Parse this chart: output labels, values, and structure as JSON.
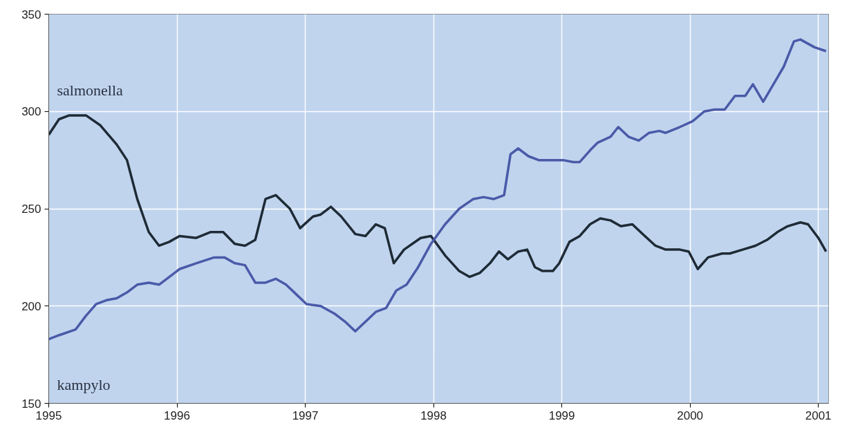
{
  "chart_data": {
    "type": "line",
    "xlim": [
      1995,
      2001.08
    ],
    "xticks": [
      1995,
      1996,
      1997,
      1998,
      1999,
      2000,
      2001
    ],
    "ylim": [
      150,
      350
    ],
    "yticks": [
      150,
      200,
      250,
      300,
      350
    ],
    "grid": true,
    "marker": "none",
    "line_style": "solid",
    "series": [
      {
        "name": "salmonella",
        "color": "#1e2a35",
        "x": [
          1995.0,
          1995.08,
          1995.16,
          1995.29,
          1995.4,
          1995.53,
          1995.61,
          1995.69,
          1995.78,
          1995.86,
          1995.94,
          1996.02,
          1996.15,
          1996.26,
          1996.36,
          1996.45,
          1996.53,
          1996.61,
          1996.69,
          1996.77,
          1996.88,
          1996.96,
          1997.06,
          1997.12,
          1997.2,
          1997.28,
          1997.39,
          1997.47,
          1997.55,
          1997.62,
          1997.69,
          1997.77,
          1997.9,
          1997.98,
          1998.09,
          1998.2,
          1998.28,
          1998.36,
          1998.44,
          1998.51,
          1998.58,
          1998.66,
          1998.73,
          1998.79,
          1998.85,
          1998.93,
          1998.98,
          1999.06,
          1999.14,
          1999.22,
          1999.3,
          1999.38,
          1999.46,
          1999.55,
          1999.63,
          1999.73,
          1999.81,
          1999.92,
          1999.99,
          2000.06,
          2000.14,
          2000.25,
          2000.31,
          2000.41,
          2000.51,
          2000.6,
          2000.68,
          2000.76,
          2000.86,
          2000.92,
          2001.0,
          2001.06
        ],
        "values": [
          288,
          296,
          298,
          298,
          293,
          283,
          275,
          255,
          238,
          231,
          233,
          236,
          235,
          238,
          238,
          232,
          231,
          234,
          255,
          257,
          250,
          240,
          246,
          247,
          251,
          246,
          237,
          236,
          242,
          240,
          222,
          229,
          235,
          236,
          226,
          218,
          215,
          217,
          222,
          228,
          224,
          228,
          229,
          220,
          218,
          218,
          222,
          233,
          236,
          242,
          245,
          244,
          241,
          242,
          237,
          231,
          229,
          229,
          228,
          219,
          225,
          227,
          227,
          229,
          231,
          234,
          238,
          241,
          243,
          242,
          235,
          228
        ]
      },
      {
        "name": "kampylo",
        "color": "#4a5aa8",
        "x": [
          1995.0,
          1995.08,
          1995.21,
          1995.29,
          1995.37,
          1995.45,
          1995.53,
          1995.61,
          1995.69,
          1995.78,
          1995.86,
          1995.94,
          1996.02,
          1996.15,
          1996.29,
          1996.37,
          1996.45,
          1996.53,
          1996.61,
          1996.69,
          1996.77,
          1996.85,
          1996.93,
          1997.01,
          1997.12,
          1997.23,
          1997.31,
          1997.39,
          1997.47,
          1997.55,
          1997.63,
          1997.71,
          1997.79,
          1997.88,
          1997.98,
          1998.09,
          1998.2,
          1998.31,
          1998.39,
          1998.47,
          1998.55,
          1998.6,
          1998.66,
          1998.74,
          1998.82,
          1999.01,
          1999.09,
          1999.14,
          1999.22,
          1999.28,
          1999.38,
          1999.44,
          1999.52,
          1999.6,
          1999.68,
          1999.76,
          1999.81,
          1999.92,
          2000.02,
          2000.11,
          2000.19,
          2000.27,
          2000.35,
          2000.43,
          2000.49,
          2000.57,
          2000.65,
          2000.73,
          2000.81,
          2000.86,
          2000.97,
          2001.06
        ],
        "values": [
          183,
          185,
          188,
          195,
          201,
          203,
          204,
          207,
          211,
          212,
          211,
          215,
          219,
          222,
          225,
          225,
          222,
          221,
          212,
          212,
          214,
          211,
          206,
          201,
          200,
          196,
          192,
          187,
          192,
          197,
          199,
          208,
          211,
          220,
          232,
          242,
          250,
          255,
          256,
          255,
          257,
          278,
          281,
          277,
          275,
          275,
          274,
          274,
          280,
          284,
          287,
          292,
          287,
          285,
          289,
          290,
          289,
          292,
          295,
          300,
          301,
          301,
          308,
          308,
          314,
          305,
          314,
          323,
          336,
          337,
          333,
          331
        ]
      }
    ]
  }
}
